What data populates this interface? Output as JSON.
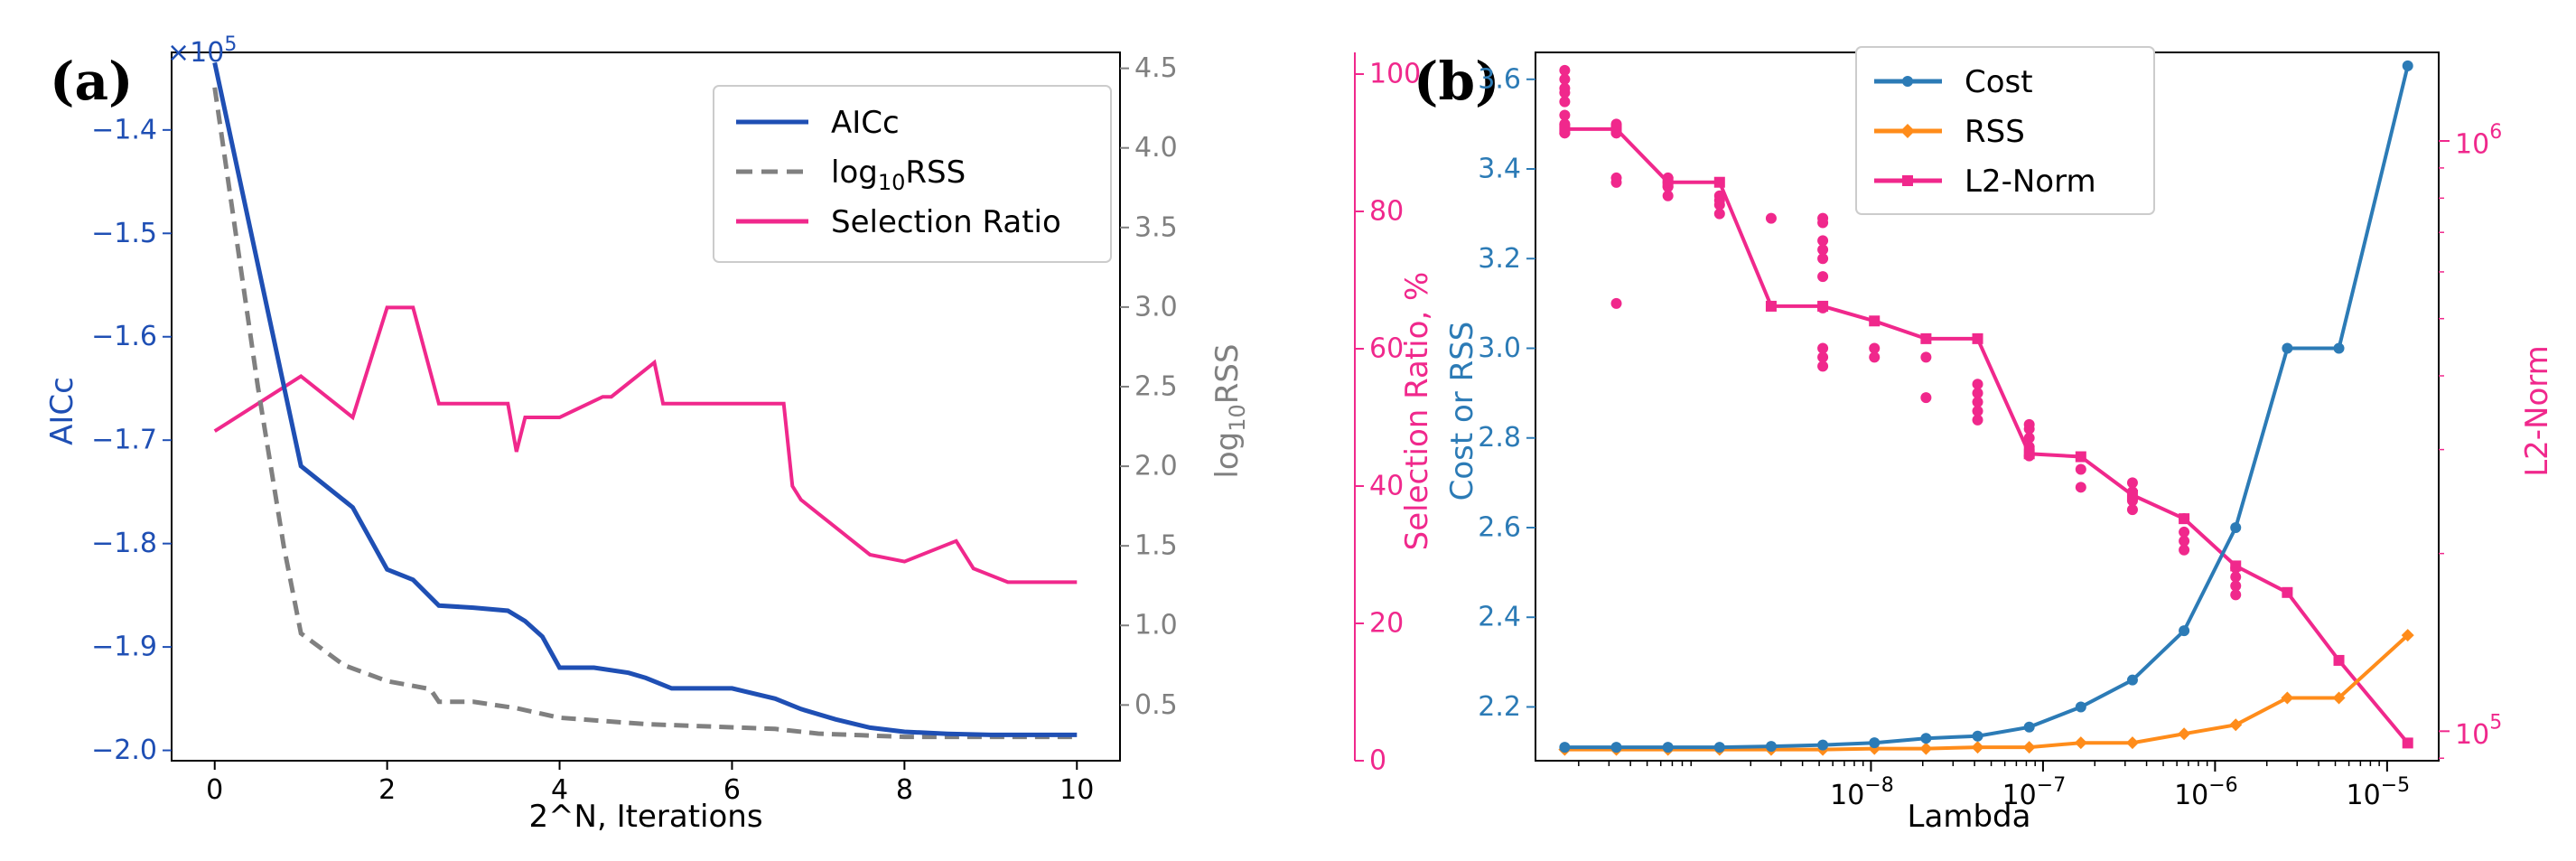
{
  "colors": {
    "aicc": "#1f4fb4",
    "rss": "#808080",
    "sel": "#f0288c",
    "cost": "#2c7bb6",
    "rss_b": "#ff8c1a",
    "l2": "#f0288c",
    "axis": "#000000"
  },
  "chart_data": [
    {
      "type": "line",
      "panel_label": "(a)",
      "title": "",
      "xlabel": "2^N, Iterations",
      "ylabel_left": "AICc",
      "ylabel_right": "log$_{10}$RSS",
      "ylabel_right_main": "log",
      "ylabel_right_sub": "10",
      "ylabel_right_tail": "RSS",
      "ylabel_far_right": "Selection Ratio, %",
      "multiplier": "×10",
      "multiplier_exp": "5",
      "xlim": [
        -0.5,
        10.5
      ],
      "ylim_left": [
        -2.01,
        -1.325
      ],
      "ylim_right": [
        0.15,
        4.6
      ],
      "ylim_far_right": [
        0,
        100
      ],
      "x_ticks": [
        0,
        2,
        4,
        6,
        8,
        10
      ],
      "x_tick_labels": [
        "0",
        "2",
        "4",
        "6",
        "8",
        "10"
      ],
      "y_left_ticks": [
        -2.0,
        -1.9,
        -1.8,
        -1.7,
        -1.6,
        -1.5,
        -1.4
      ],
      "y_left_tick_labels": [
        "−2.0",
        "−1.9",
        "−1.8",
        "−1.7",
        "−1.6",
        "−1.5",
        "−1.4"
      ],
      "y_right_ticks": [
        0.5,
        1.0,
        1.5,
        2.0,
        2.5,
        3.0,
        3.5,
        4.0,
        4.5
      ],
      "y_right_tick_labels": [
        "0.5",
        "1.0",
        "1.5",
        "2.0",
        "2.5",
        "3.0",
        "3.5",
        "4.0",
        "4.5"
      ],
      "y_far_right_ticks": [
        0,
        20,
        40,
        60,
        80,
        100
      ],
      "y_far_right_tick_labels": [
        "0",
        "20",
        "40",
        "60",
        "80",
        "100"
      ],
      "legend": [
        "AICc",
        "log$_{10}$RSS",
        "Selection Ratio"
      ],
      "legend_labels": {
        "aicc": "AICc",
        "rss_main": "log",
        "rss_sub": "10",
        "rss_tail": "RSS",
        "sel": "Selection Ratio"
      },
      "legend_placement": "top-right",
      "series": [
        {
          "name": "AICc",
          "axis": "left",
          "x": [
            0,
            1,
            1.6,
            2,
            2.3,
            2.6,
            3.0,
            3.4,
            3.6,
            3.8,
            4.0,
            4.4,
            4.8,
            5.0,
            5.3,
            6.0,
            6.5,
            6.8,
            7.2,
            7.6,
            8.0,
            8.5,
            9.0,
            10
          ],
          "y": [
            -1.335,
            -1.725,
            -1.765,
            -1.825,
            -1.835,
            -1.86,
            -1.862,
            -1.865,
            -1.875,
            -1.89,
            -1.92,
            -1.92,
            -1.925,
            -1.93,
            -1.94,
            -1.94,
            -1.95,
            -1.96,
            -1.97,
            -1.978,
            -1.982,
            -1.984,
            -1.985,
            -1.985
          ]
        },
        {
          "name": "log10RSS",
          "axis": "right",
          "x": [
            0,
            0.5,
            0.8,
            1,
            1.5,
            2.0,
            2.5,
            2.6,
            3.0,
            3.5,
            4.0,
            5.0,
            6.5,
            7.0,
            7.5,
            8.0,
            8.5,
            10
          ],
          "y": [
            4.38,
            2.5,
            1.5,
            0.95,
            0.75,
            0.65,
            0.6,
            0.52,
            0.52,
            0.48,
            0.42,
            0.38,
            0.35,
            0.32,
            0.31,
            0.3,
            0.3,
            0.3
          ]
        },
        {
          "name": "Selection Ratio",
          "axis": "far-right",
          "x": [
            0,
            0.5,
            1.0,
            1.6,
            2.0,
            2.3,
            2.6,
            3.0,
            3.4,
            3.5,
            3.6,
            4.0,
            4.5,
            4.6,
            4.8,
            5.0,
            5.1,
            5.2,
            6.0,
            6.6,
            6.7,
            6.8,
            7.0,
            7.2,
            7.4,
            7.6,
            8.0,
            8.6,
            8.8,
            9.2,
            10
          ],
          "y": [
            48,
            52,
            56,
            50,
            66,
            66,
            52,
            52,
            52,
            45,
            50,
            50,
            53,
            53,
            55,
            57,
            58,
            52,
            52,
            52,
            40,
            38,
            36,
            34,
            32,
            30,
            29,
            32,
            28,
            26,
            26
          ]
        }
      ]
    },
    {
      "type": "line",
      "panel_label": "(b)",
      "title": "",
      "xlabel": "Lambda",
      "ylabel_left": "Cost or RSS",
      "ylabel_right": "L2-Norm",
      "x_scale": "log",
      "xlim_log10": [
        -9.95,
        -4.7
      ],
      "ylim_left": [
        2.08,
        3.66
      ],
      "ylim_right_log10": [
        4.95,
        6.15
      ],
      "x_tick_log10": [
        -8,
        -7,
        -6,
        -5
      ],
      "x_tick_labels": [
        "10",
        "10",
        "10",
        "10"
      ],
      "x_tick_exps": [
        "−8",
        "−7",
        "−6",
        "−5"
      ],
      "y_left_ticks": [
        2.2,
        2.4,
        2.6,
        2.8,
        3.0,
        3.2,
        3.4,
        3.6
      ],
      "y_left_tick_labels": [
        "2.2",
        "2.4",
        "2.6",
        "2.8",
        "3.0",
        "3.2",
        "3.4",
        "3.6"
      ],
      "y_right_tick_log10": [
        5,
        6
      ],
      "y_right_tick_labels": [
        "10",
        "10"
      ],
      "y_right_tick_exps": [
        "5",
        "6"
      ],
      "legend": [
        "Cost",
        "RSS",
        "L2-Norm"
      ],
      "legend_placement": "top-center",
      "lambda_log10": [
        -9.78,
        -9.48,
        -9.18,
        -8.88,
        -8.58,
        -8.28,
        -7.98,
        -7.68,
        -7.38,
        -7.08,
        -6.78,
        -6.48,
        -6.18,
        -5.88,
        -5.58,
        -5.28,
        -4.88
      ],
      "series": [
        {
          "name": "Cost",
          "axis": "left",
          "marker": "o",
          "y": [
            2.11,
            2.11,
            2.11,
            2.11,
            2.112,
            2.115,
            2.12,
            2.13,
            2.135,
            2.155,
            2.2,
            2.26,
            2.37,
            2.6,
            3.0,
            3.0,
            3.63
          ]
        },
        {
          "name": "RSS",
          "axis": "left",
          "marker": "+",
          "y": [
            2.105,
            2.105,
            2.105,
            2.105,
            2.105,
            2.105,
            2.107,
            2.107,
            2.11,
            2.11,
            2.12,
            2.12,
            2.14,
            2.16,
            2.22,
            2.22,
            2.36
          ]
        },
        {
          "name": "L2-Norm",
          "axis": "right",
          "marker": "s",
          "y_log10": [
            6.02,
            6.02,
            5.93,
            5.93,
            5.72,
            5.72,
            5.695,
            5.665,
            5.665,
            5.47,
            5.465,
            5.4,
            5.36,
            5.28,
            5.235,
            5.12,
            4.98
          ]
        }
      ],
      "scatter_points": [
        {
          "x_log10": -9.78,
          "y": [
            3.48,
            3.5,
            3.52,
            3.55,
            3.57,
            3.58,
            3.6,
            3.62
          ]
        },
        {
          "x_log10": -9.48,
          "y": [
            3.1,
            3.37,
            3.38,
            3.48,
            3.5
          ]
        },
        {
          "x_log10": -9.18,
          "y": [
            3.34,
            3.36,
            3.37,
            3.38
          ]
        },
        {
          "x_log10": -8.88,
          "y": [
            3.3,
            3.32,
            3.33,
            3.34
          ]
        },
        {
          "x_log10": -8.58,
          "y": [
            3.29
          ]
        },
        {
          "x_log10": -8.28,
          "y": [
            2.96,
            2.98,
            3.0,
            3.09,
            3.16,
            3.2,
            3.22,
            3.24,
            3.28,
            3.29
          ]
        },
        {
          "x_log10": -7.98,
          "y": [
            2.98,
            3.0
          ]
        },
        {
          "x_log10": -7.68,
          "y": [
            2.89,
            2.98
          ]
        },
        {
          "x_log10": -7.38,
          "y": [
            2.84,
            2.86,
            2.88,
            2.9,
            2.92
          ]
        },
        {
          "x_log10": -7.08,
          "y": [
            2.76,
            2.78,
            2.8,
            2.82,
            2.83
          ]
        },
        {
          "x_log10": -6.78,
          "y": [
            2.69,
            2.73
          ]
        },
        {
          "x_log10": -6.48,
          "y": [
            2.64,
            2.66,
            2.68,
            2.7
          ]
        },
        {
          "x_log10": -6.18,
          "y": [
            2.55,
            2.57,
            2.59,
            2.62
          ]
        },
        {
          "x_log10": -5.88,
          "y": [
            2.45,
            2.47,
            2.49,
            2.51
          ]
        }
      ]
    }
  ]
}
